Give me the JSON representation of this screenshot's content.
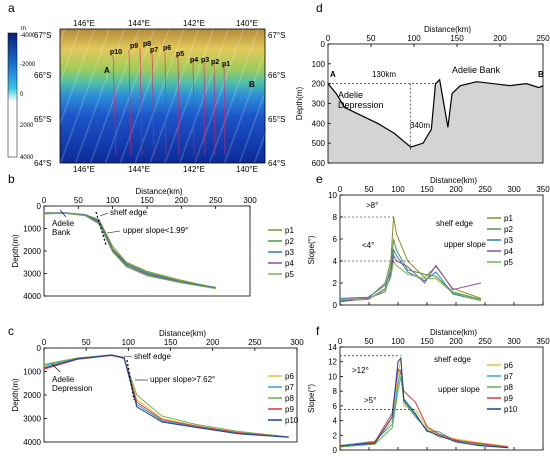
{
  "panel_labels": [
    "a",
    "b",
    "c",
    "d",
    "e",
    "f"
  ],
  "map": {
    "lon_top": [
      "146°E",
      "144°E",
      "142°E",
      "140°E"
    ],
    "lon_bottom": [
      "146°E",
      "144°E",
      "142°E",
      "140°E"
    ],
    "lat_left": [
      "67°S",
      "66°S",
      "65°S",
      "64°S"
    ],
    "lat_right": [
      "67°S",
      "66°S",
      "65°S",
      "64°S"
    ],
    "colorbar_unit": "m",
    "colorbar_ticks": [
      "-4000",
      "-2000",
      "0",
      "2000",
      "4000"
    ],
    "profiles": [
      "p10",
      "p9",
      "p8",
      "p7",
      "p6",
      "p5",
      "p4",
      "p3",
      "p2",
      "p1"
    ],
    "point_a": "A",
    "point_b": "B"
  },
  "chart_data": [
    {
      "panel": "b",
      "type": "line",
      "xlabel": "Distance(km)",
      "ylabel": "Depth(m)",
      "xlim": [
        0,
        300
      ],
      "ylim": [
        0,
        4000
      ],
      "y_inverted": true,
      "xticks": [
        "0",
        "50",
        "100",
        "150",
        "200",
        "250",
        "300"
      ],
      "yticks": [
        "0",
        "1000",
        "2000",
        "3000",
        "4000"
      ],
      "annotations": {
        "bank": "Adelie\nBank",
        "shelf": "shelf edge",
        "slope": "upper slope<1.99°"
      },
      "series": [
        {
          "name": "p1",
          "color": "#8c8c2a",
          "x": [
            0,
            30,
            60,
            80,
            100,
            120,
            150,
            200,
            250
          ],
          "y": [
            300,
            300,
            380,
            600,
            1800,
            2500,
            2900,
            3300,
            3650
          ]
        },
        {
          "name": "p2",
          "color": "#4a9a3a",
          "x": [
            0,
            30,
            60,
            80,
            100,
            120,
            150,
            200,
            250
          ],
          "y": [
            320,
            310,
            390,
            650,
            1900,
            2550,
            2950,
            3350,
            3620
          ]
        },
        {
          "name": "p3",
          "color": "#2c7fbf",
          "x": [
            0,
            30,
            60,
            80,
            100,
            120,
            150,
            200,
            250
          ],
          "y": [
            330,
            300,
            400,
            700,
            1950,
            2600,
            3000,
            3380,
            3640
          ]
        },
        {
          "name": "p4",
          "color": "#8e4aa8",
          "x": [
            0,
            30,
            60,
            80,
            100,
            120,
            150,
            200,
            250
          ],
          "y": [
            340,
            320,
            420,
            750,
            2000,
            2650,
            3050,
            3400,
            3660
          ]
        },
        {
          "name": "p5",
          "color": "#7ab44a",
          "x": [
            0,
            30,
            60,
            80,
            100,
            120,
            150,
            200,
            250
          ],
          "y": [
            350,
            330,
            430,
            800,
            2050,
            2700,
            3100,
            3420,
            3670
          ]
        }
      ]
    },
    {
      "panel": "c",
      "type": "line",
      "xlabel": "Distance(km)",
      "ylabel": "Depth(m)",
      "xlim": [
        0,
        300
      ],
      "ylim": [
        0,
        4000
      ],
      "y_inverted": true,
      "xticks": [
        "0",
        "50",
        "100",
        "150",
        "200",
        "250",
        "300"
      ],
      "yticks": [
        "0",
        "1000",
        "2000",
        "3000",
        "4000"
      ],
      "annotations": {
        "depression": "Adelie\nDepression",
        "shelf": "shelf edge",
        "slope": "upper slope>7.62°"
      },
      "series": [
        {
          "name": "p6",
          "color": "#e5c23a",
          "x": [
            0,
            40,
            80,
            95,
            110,
            140,
            180,
            230,
            290
          ],
          "y": [
            800,
            450,
            300,
            400,
            2200,
            3000,
            3300,
            3600,
            3800
          ]
        },
        {
          "name": "p7",
          "color": "#2aa8c8",
          "x": [
            0,
            40,
            80,
            95,
            110,
            140,
            180,
            230,
            290
          ],
          "y": [
            750,
            430,
            290,
            420,
            2400,
            3100,
            3350,
            3620,
            3800
          ]
        },
        {
          "name": "p8",
          "color": "#6ab04a",
          "x": [
            0,
            40,
            80,
            95,
            110,
            140,
            180,
            230,
            290
          ],
          "y": [
            700,
            420,
            310,
            450,
            2000,
            2900,
            3250,
            3550,
            3780
          ]
        },
        {
          "name": "p9",
          "color": "#d23a3a",
          "x": [
            0,
            40,
            80,
            95,
            110,
            140,
            180,
            230,
            290
          ],
          "y": [
            900,
            480,
            320,
            430,
            2300,
            3050,
            3320,
            3600,
            3800
          ]
        },
        {
          "name": "p10",
          "color": "#1d3f9e",
          "x": [
            0,
            40,
            80,
            95,
            110,
            140,
            180,
            230,
            290
          ],
          "y": [
            850,
            460,
            300,
            410,
            2500,
            3150,
            3380,
            3650,
            3800
          ]
        }
      ]
    },
    {
      "panel": "d",
      "type": "area",
      "xlabel": "Distance(km)",
      "ylabel": "Depth(m)",
      "xlim": [
        0,
        260
      ],
      "ylim": [
        0,
        600
      ],
      "y_inverted": true,
      "xticks": [
        "0",
        "50",
        "100",
        "150",
        "200",
        "250"
      ],
      "yticks": [
        "0",
        "100",
        "200",
        "300",
        "400",
        "500",
        "600"
      ],
      "annotations": {
        "bank": "Adelie Bank",
        "depression": "Adelie\nDepression",
        "dist": "130km",
        "depth": "340m",
        "a": "A",
        "b": "B"
      },
      "series": [
        {
          "name": "",
          "x": [
            0,
            10,
            20,
            40,
            60,
            80,
            100,
            115,
            125,
            130,
            135,
            140,
            145,
            150,
            160,
            180,
            200,
            220,
            240,
            255,
            260
          ],
          "y": [
            200,
            250,
            320,
            360,
            400,
            450,
            520,
            500,
            430,
            200,
            180,
            300,
            420,
            250,
            210,
            190,
            200,
            210,
            200,
            220,
            210
          ]
        }
      ]
    },
    {
      "panel": "e",
      "type": "line",
      "xlabel": "Distance(km)",
      "ylabel": "Slope(°)",
      "xlim": [
        0,
        360
      ],
      "ylim": [
        0,
        10
      ],
      "xticks": [
        "0",
        "50",
        "100",
        "150",
        "200",
        "250",
        "300",
        "350"
      ],
      "yticks": [
        "0",
        "2",
        "4",
        "6",
        "8",
        "10"
      ],
      "annotations": {
        "gt8": ">8°",
        "lt4": "<4°",
        "shelf": "shelf edge",
        "slope": "upper slope"
      },
      "series": [
        {
          "name": "p1",
          "color": "#8c8c2a",
          "x": [
            0,
            50,
            80,
            90,
            95,
            100,
            120,
            150,
            170,
            200,
            250
          ],
          "y": [
            0.5,
            0.6,
            2.0,
            4.0,
            8.0,
            6.5,
            4.0,
            2.5,
            3.5,
            1.5,
            0.6
          ]
        },
        {
          "name": "p2",
          "color": "#4a9a3a",
          "x": [
            0,
            50,
            80,
            90,
            95,
            100,
            120,
            150,
            170,
            200,
            250
          ],
          "y": [
            0.4,
            0.5,
            1.5,
            3.5,
            6.0,
            5.0,
            3.2,
            2.8,
            2.6,
            1.2,
            0.5
          ]
        },
        {
          "name": "p3",
          "color": "#2c7fbf",
          "x": [
            0,
            50,
            80,
            90,
            95,
            100,
            120,
            150,
            170,
            200,
            250
          ],
          "y": [
            0.6,
            0.7,
            1.8,
            3.0,
            5.0,
            4.5,
            3.0,
            2.2,
            3.0,
            1.0,
            0.4
          ]
        },
        {
          "name": "p4",
          "color": "#8e4aa8",
          "x": [
            0,
            50,
            80,
            90,
            95,
            100,
            120,
            150,
            170,
            200,
            250
          ],
          "y": [
            0.3,
            0.6,
            1.2,
            2.8,
            4.5,
            4.0,
            3.5,
            2.0,
            3.6,
            1.4,
            2.0
          ]
        },
        {
          "name": "p5",
          "color": "#7ab44a",
          "x": [
            0,
            50,
            80,
            90,
            95,
            100,
            120,
            150,
            170,
            200,
            250
          ],
          "y": [
            0.5,
            0.5,
            1.4,
            2.5,
            4.0,
            3.6,
            2.8,
            2.4,
            2.4,
            1.1,
            0.4
          ]
        }
      ]
    },
    {
      "panel": "f",
      "type": "line",
      "xlabel": "Distance(km)",
      "ylabel": "Slope(°)",
      "xlim": [
        0,
        350
      ],
      "ylim": [
        0,
        14
      ],
      "xticks": [
        "0",
        "50",
        "100",
        "150",
        "200",
        "250",
        "300",
        "350"
      ],
      "yticks": [
        "0",
        "2",
        "4",
        "6",
        "8",
        "10",
        "12",
        "14"
      ],
      "annotations": {
        "gt12": ">12°",
        "gt5": ">5°",
        "shelf": "shelf edge",
        "slope": "upper slope"
      },
      "series": [
        {
          "name": "p6",
          "color": "#e5c23a",
          "x": [
            0,
            60,
            90,
            100,
            105,
            110,
            130,
            150,
            170,
            200,
            240,
            290
          ],
          "y": [
            0.5,
            1.0,
            4.0,
            10.0,
            12.5,
            6.0,
            5.5,
            3.0,
            2.0,
            1.5,
            1.0,
            0.5
          ]
        },
        {
          "name": "p7",
          "color": "#2aa8c8",
          "x": [
            0,
            60,
            90,
            100,
            105,
            110,
            130,
            150,
            170,
            200,
            240,
            290
          ],
          "y": [
            0.6,
            1.2,
            3.5,
            9.0,
            11.0,
            7.0,
            5.0,
            2.5,
            2.5,
            1.2,
            0.8,
            0.4
          ]
        },
        {
          "name": "p8",
          "color": "#6ab04a",
          "x": [
            0,
            60,
            90,
            100,
            105,
            110,
            130,
            150,
            170,
            200,
            240,
            290
          ],
          "y": [
            0.4,
            0.8,
            3.0,
            8.0,
            10.0,
            6.5,
            4.5,
            2.8,
            1.8,
            1.4,
            0.7,
            0.3
          ]
        },
        {
          "name": "p9",
          "color": "#d23a3a",
          "x": [
            0,
            60,
            90,
            100,
            105,
            110,
            130,
            150,
            170,
            200,
            240,
            290
          ],
          "y": [
            0.5,
            1.1,
            5.0,
            11.0,
            10.5,
            8.0,
            6.5,
            3.2,
            2.2,
            1.3,
            0.9,
            0.4
          ]
        },
        {
          "name": "p10",
          "color": "#1d3f9e",
          "x": [
            0,
            60,
            90,
            100,
            105,
            110,
            130,
            150,
            170,
            200,
            240,
            290
          ],
          "y": [
            0.6,
            0.9,
            4.5,
            12.0,
            12.5,
            6.8,
            4.8,
            2.6,
            2.0,
            1.1,
            0.6,
            0.3
          ]
        }
      ]
    }
  ]
}
